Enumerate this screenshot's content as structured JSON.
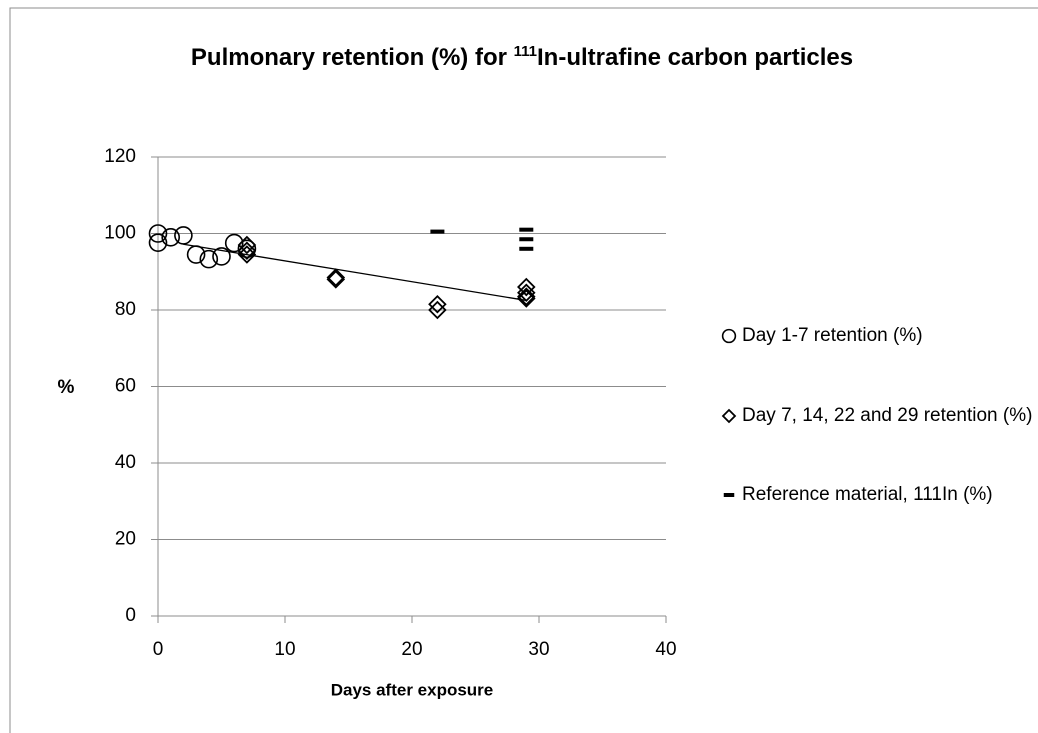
{
  "chart_data": {
    "type": "scatter",
    "title": {
      "before": "Pulmonary retention (%) for",
      "superscript": "111",
      "after": "In-ultrafine carbon particles"
    },
    "x_label": "Days after exposure",
    "y_label": "%",
    "xlim": [
      0,
      40
    ],
    "xticks": [
      0,
      10,
      20,
      30,
      40
    ],
    "ylim": [
      0,
      120
    ],
    "yticks": [
      0,
      20,
      40,
      60,
      80,
      100,
      120
    ],
    "grid": true,
    "legend": "right",
    "series": [
      {
        "name": "Day 1-7 retention (%)",
        "marker": "circle",
        "color": "#000000",
        "x": [
          0,
          0,
          1,
          2,
          3,
          4,
          5,
          6,
          7
        ],
        "values": [
          100,
          97.6,
          99,
          99.5,
          94.5,
          93.3,
          94,
          97.5,
          96
        ]
      },
      {
        "name": "Day 7, 14, 22 and 29 retention (%)",
        "marker": "diamond",
        "color": "#000000",
        "x": [
          7,
          7,
          7,
          14,
          14,
          22,
          22,
          29,
          29,
          29,
          29
        ],
        "values": [
          97,
          95.5,
          94.5,
          88.5,
          88,
          81.5,
          80,
          86,
          84.5,
          83.5,
          83
        ]
      },
      {
        "name": "Reference material, 111In (%)",
        "marker": "dash",
        "color": "#000000",
        "x": [
          22,
          29,
          29,
          29
        ],
        "values": [
          100.5,
          101,
          98.5,
          96
        ]
      }
    ],
    "trendline": {
      "color": "#000000",
      "x": [
        2,
        29
      ],
      "values": [
        97.2,
        82.5
      ]
    }
  }
}
